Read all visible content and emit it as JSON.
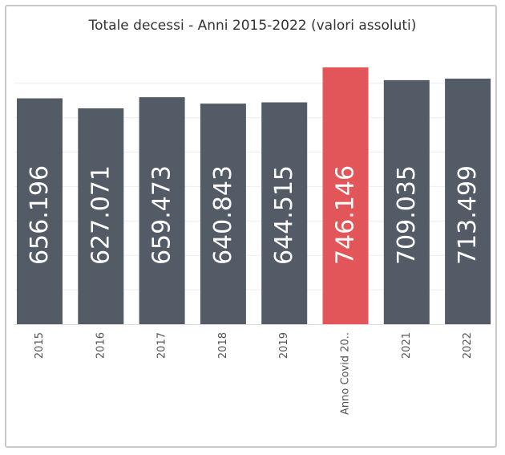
{
  "chart_data": {
    "type": "bar",
    "title": "Totale decessi - Anni 2015-2022 (valori assoluti)",
    "categories": [
      "2015",
      "2016",
      "2017",
      "2018",
      "2019",
      "Anno Covid 20..",
      "2021",
      "2022"
    ],
    "values": [
      656196,
      627071,
      659473,
      640843,
      644515,
      746146,
      709035,
      713499
    ],
    "value_labels": [
      "656.196",
      "627.071",
      "659.473",
      "640.843",
      "644.515",
      "746.146",
      "709.035",
      "713.499"
    ],
    "highlight_index": 5,
    "ylim": [
      0,
      760000
    ],
    "grid": true,
    "xlabel": "",
    "ylabel": "",
    "colors": {
      "bar": "#535b67",
      "highlight": "#e25659",
      "label": "#ffffff",
      "tick": "#555555",
      "grid": "#eeeeee"
    }
  }
}
